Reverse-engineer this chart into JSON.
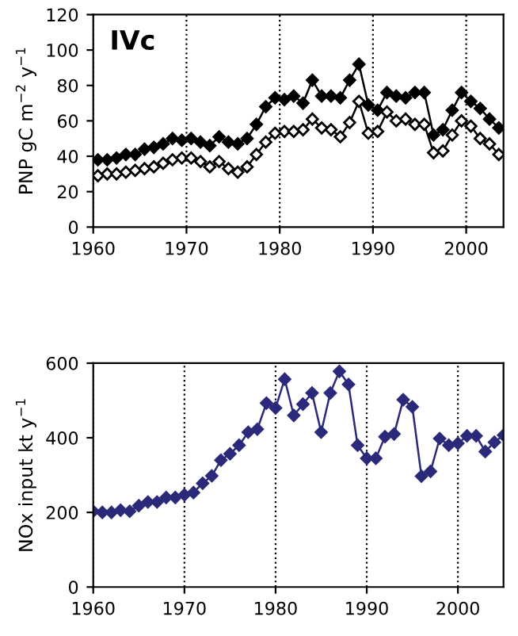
{
  "chart_data": [
    {
      "type": "line",
      "ylabel": "PNP gC m$^{−2}$ y$^{−1}$",
      "annotations": [
        "IVc"
      ],
      "x": [
        1960.5,
        1961.5,
        1962.5,
        1963.5,
        1964.5,
        1965.5,
        1966.5,
        1967.5,
        1968.5,
        1969.5,
        1970.5,
        1971.5,
        1972.5,
        1973.5,
        1974.5,
        1975.5,
        1976.5,
        1977.5,
        1978.5,
        1979.5,
        1980.5,
        1981.5,
        1982.5,
        1983.5,
        1984.5,
        1985.5,
        1986.5,
        1987.5,
        1988.5,
        1989.5,
        1990.5,
        1991.5,
        1992.5,
        1993.5,
        1994.5,
        1995.5,
        1996.5,
        1997.5,
        1998.5,
        1999.5,
        2000.5,
        2001.5,
        2002.5,
        2003.5
      ],
      "series": [
        {
          "color": "#000000",
          "values": [
            38,
            38,
            39,
            41,
            41,
            44,
            45,
            47,
            50,
            49,
            50,
            48,
            46,
            51,
            48,
            47,
            50,
            58,
            68,
            73,
            72,
            74,
            70,
            83,
            74,
            74,
            73,
            83,
            92,
            69,
            66,
            76,
            74,
            73,
            76,
            76,
            52,
            55,
            66,
            76,
            71,
            67,
            61,
            56
          ]
        },
        {
          "color": "#000000",
          "values": [
            29,
            30,
            30,
            31,
            32,
            33,
            34,
            36,
            38,
            39,
            39,
            37,
            34,
            37,
            33,
            31,
            34,
            41,
            48,
            53,
            54,
            54,
            55,
            61,
            56,
            55,
            51,
            59,
            71,
            53,
            54,
            65,
            60,
            61,
            58,
            58,
            42,
            43,
            52,
            60,
            57,
            50,
            47,
            41
          ]
        }
      ],
      "xlim": [
        1960,
        2004
      ],
      "xticks": [
        1960,
        1970,
        1980,
        1990,
        2000
      ],
      "ylim": [
        0,
        120
      ],
      "yticks": [
        0,
        20,
        40,
        60,
        80,
        100,
        120
      ],
      "grid": "x",
      "marker": "diamond",
      "legend": false
    },
    {
      "type": "line",
      "ylabel": "NOx input kt y$^{−1}$",
      "x": [
        1960,
        1961,
        1962,
        1963,
        1964,
        1965,
        1966,
        1967,
        1968,
        1969,
        1970,
        1971,
        1972,
        1973,
        1974,
        1975,
        1976,
        1977,
        1978,
        1979,
        1980,
        1981,
        1982,
        1983,
        1984,
        1985,
        1986,
        1987,
        1988,
        1989,
        1990,
        1991,
        1992,
        1993,
        1994,
        1995,
        1996,
        1997,
        1998,
        1999,
        2000,
        2001,
        2002,
        2003,
        2004,
        2005
      ],
      "series": [
        {
          "color": "#2b2a7a",
          "values": [
            203,
            200,
            200,
            206,
            203,
            218,
            228,
            228,
            240,
            240,
            247,
            253,
            278,
            298,
            340,
            357,
            380,
            415,
            423,
            493,
            480,
            557,
            460,
            490,
            520,
            415,
            520,
            578,
            543,
            380,
            345,
            345,
            403,
            410,
            502,
            483,
            297,
            310,
            398,
            380,
            385,
            405,
            405,
            363,
            388,
            407
          ]
        }
      ],
      "xlim": [
        1960,
        2005
      ],
      "xticks": [
        1960,
        1970,
        1980,
        1990,
        2000
      ],
      "ylim": [
        0,
        600
      ],
      "yticks": [
        0,
        200,
        400,
        600
      ],
      "grid": "x",
      "marker": "diamond",
      "legend": false
    }
  ]
}
